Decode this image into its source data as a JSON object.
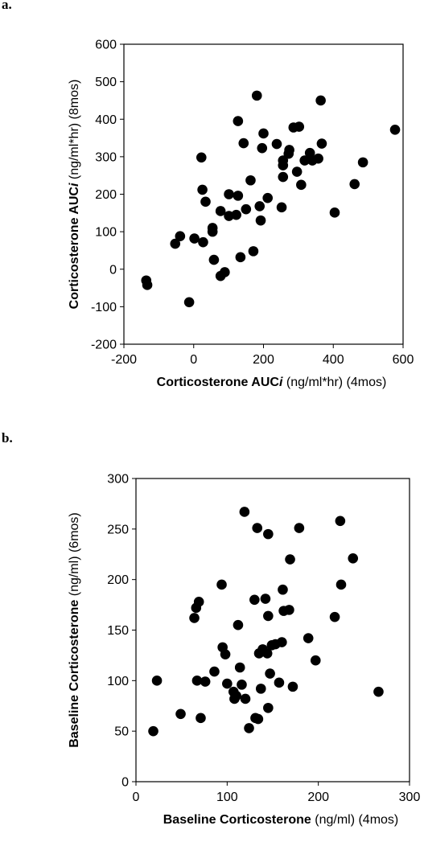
{
  "panels": [
    {
      "letter": "a."
    },
    {
      "letter": "b."
    }
  ],
  "chart_data": [
    {
      "type": "scatter",
      "title": "",
      "xlabel": {
        "bold": "Corticosterone AUC",
        "italic": "i",
        "rest": " (ng/ml*hr) (4mos)"
      },
      "ylabel": {
        "bold": "Corticosterone AUC",
        "italic": "i",
        "rest": " (ng/ml*hr) (8mos)"
      },
      "xlim": [
        -200,
        600
      ],
      "ylim": [
        -200,
        600
      ],
      "xticks": [
        -200,
        0,
        200,
        400,
        600
      ],
      "yticks": [
        -200,
        -100,
        0,
        100,
        200,
        300,
        400,
        500,
        600
      ],
      "marker_color": "#000000",
      "grid": false,
      "points": [
        [
          -136,
          -30
        ],
        [
          -133,
          -42
        ],
        [
          -53,
          68
        ],
        [
          -39,
          88
        ],
        [
          -13,
          -88
        ],
        [
          2,
          82
        ],
        [
          22,
          298
        ],
        [
          25,
          212
        ],
        [
          27,
          72
        ],
        [
          34,
          180
        ],
        [
          54,
          110
        ],
        [
          54,
          100
        ],
        [
          58,
          25
        ],
        [
          77,
          155
        ],
        [
          77,
          -18
        ],
        [
          89,
          -8
        ],
        [
          101,
          200
        ],
        [
          101,
          142
        ],
        [
          122,
          145
        ],
        [
          127,
          196
        ],
        [
          127,
          395
        ],
        [
          134,
          32
        ],
        [
          143,
          336
        ],
        [
          150,
          160
        ],
        [
          163,
          237
        ],
        [
          171,
          48
        ],
        [
          181,
          463
        ],
        [
          189,
          168
        ],
        [
          192,
          130
        ],
        [
          196,
          323
        ],
        [
          200,
          362
        ],
        [
          212,
          190
        ],
        [
          238,
          334
        ],
        [
          252,
          165
        ],
        [
          256,
          290
        ],
        [
          256,
          277
        ],
        [
          256,
          246
        ],
        [
          272,
          308
        ],
        [
          274,
          318
        ],
        [
          286,
          378
        ],
        [
          296,
          260
        ],
        [
          302,
          380
        ],
        [
          308,
          225
        ],
        [
          318,
          290
        ],
        [
          333,
          310
        ],
        [
          340,
          290
        ],
        [
          357,
          295
        ],
        [
          364,
          450
        ],
        [
          367,
          335
        ],
        [
          404,
          151
        ],
        [
          461,
          227
        ],
        [
          485,
          285
        ],
        [
          577,
          372
        ]
      ]
    },
    {
      "type": "scatter",
      "title": "",
      "xlabel": {
        "bold": "Baseline Corticosterone",
        "rest": " (ng/ml) (4mos)"
      },
      "ylabel": {
        "bold": "Baseline Corticosterone",
        "rest": " (ng/ml) (6mos)"
      },
      "xlim": [
        0,
        300
      ],
      "ylim": [
        0,
        300
      ],
      "xticks": [
        0,
        100,
        200,
        300
      ],
      "yticks": [
        0,
        50,
        100,
        150,
        200,
        250,
        300
      ],
      "marker_color": "#000000",
      "grid": false,
      "points": [
        [
          19,
          50
        ],
        [
          23,
          100
        ],
        [
          49,
          67
        ],
        [
          64,
          162
        ],
        [
          66,
          172
        ],
        [
          67,
          100
        ],
        [
          69,
          178
        ],
        [
          71,
          63
        ],
        [
          76,
          99
        ],
        [
          86,
          109
        ],
        [
          94,
          195
        ],
        [
          95,
          133
        ],
        [
          98,
          126
        ],
        [
          100,
          97
        ],
        [
          107,
          89
        ],
        [
          108,
          82
        ],
        [
          110,
          85
        ],
        [
          112,
          155
        ],
        [
          114,
          113
        ],
        [
          116,
          96
        ],
        [
          119,
          267
        ],
        [
          120,
          82
        ],
        [
          124,
          53
        ],
        [
          130,
          180
        ],
        [
          131,
          63
        ],
        [
          133,
          251
        ],
        [
          134,
          62
        ],
        [
          135,
          127
        ],
        [
          137,
          92
        ],
        [
          139,
          131
        ],
        [
          142,
          181
        ],
        [
          144,
          127
        ],
        [
          145,
          245
        ],
        [
          145,
          73
        ],
        [
          145,
          164
        ],
        [
          147,
          107
        ],
        [
          149,
          135
        ],
        [
          153,
          136
        ],
        [
          157,
          98
        ],
        [
          160,
          138
        ],
        [
          161,
          190
        ],
        [
          162,
          169
        ],
        [
          168,
          170
        ],
        [
          169,
          220
        ],
        [
          172,
          94
        ],
        [
          179,
          251
        ],
        [
          189,
          142
        ],
        [
          197,
          120
        ],
        [
          218,
          163
        ],
        [
          224,
          258
        ],
        [
          225,
          195
        ],
        [
          238,
          221
        ],
        [
          266,
          89
        ]
      ]
    }
  ]
}
